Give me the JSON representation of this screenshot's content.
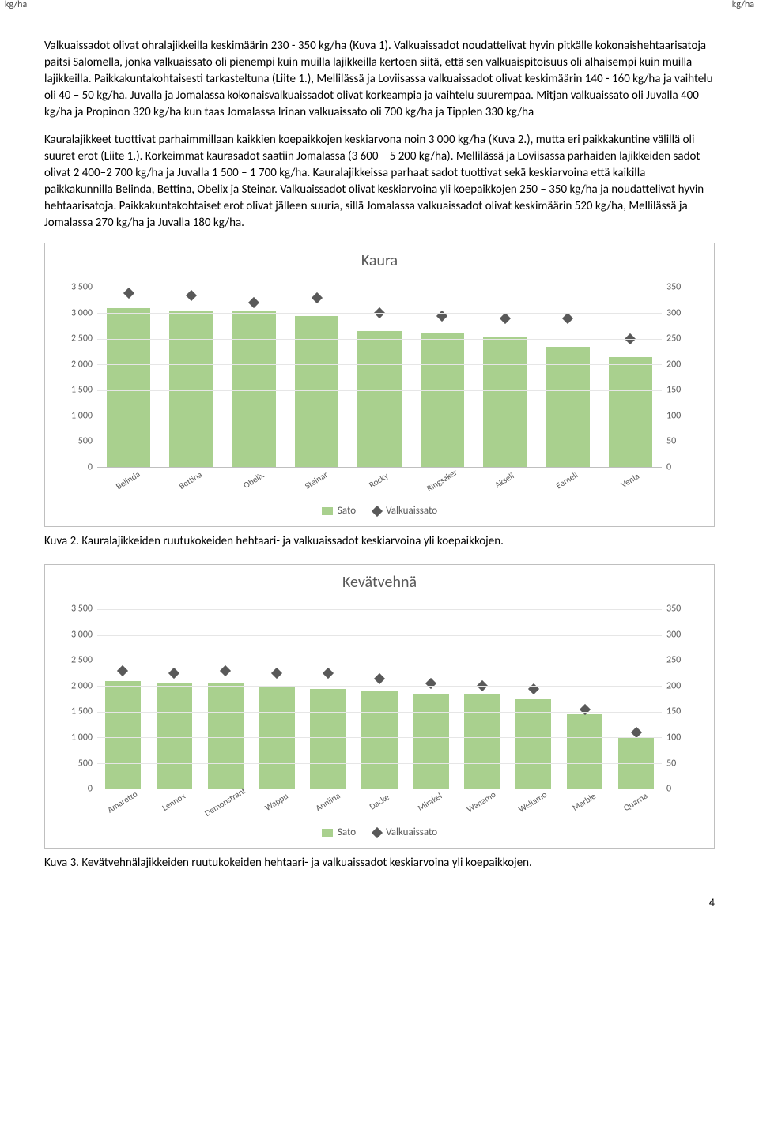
{
  "paragraphs": {
    "p1": "Valkuaissadot olivat ohralajikkeilla keskimäärin 230 - 350 kg/ha (Kuva 1). Valkuaissadot noudattelivat hyvin pitkälle kokonaishehtaarisatoja paitsi Salomella, jonka valkuaissato oli pienempi kuin muilla lajikkeilla kertoen siitä, että sen valkuaispitoisuus oli alhaisempi kuin muilla lajikkeilla. Paikkakuntakohtaisesti tarkasteltuna (Liite 1.), Mellilässä ja Loviisassa valkuaissadot olivat keskimäärin 140 - 160 kg/ha ja vaihtelu oli 40 – 50 kg/ha. Juvalla ja Jomalassa kokonaisvalkuaissadot olivat korkeampia ja vaihtelu suurempaa. Mitjan valkuaissato oli Juvalla 400 kg/ha ja Propinon 320 kg/ha kun taas Jomalassa Irinan valkuaissato oli 700 kg/ha ja Tipplen 330 kg/ha",
    "p2": "Kauralajikkeet tuottivat parhaimmillaan kaikkien koepaikkojen keskiarvona noin 3 000 kg/ha (Kuva 2.), mutta eri paikkakuntine välillä oli suuret erot (Liite 1.). Korkeimmat kaurasadot saatiin Jomalassa (3 600 – 5 200 kg/ha). Mellilässä ja Loviisassa parhaiden lajikkeiden sadot olivat 2 400–2 700 kg/ha ja Juvalla 1 500 – 1 700 kg/ha. Kauralajikkeissa parhaat sadot tuottivat sekä keskiarvoina että kaikilla paikkakunnilla Belinda, Bettina, Obelix ja Steinar. Valkuaissadot olivat keskiarvoina yli koepaikkojen 250 – 350 kg/ha ja noudattelivat hyvin hehtaarisatoja. Paikkakuntakohtaiset erot olivat jälleen suuria, sillä Jomalassa valkuaissadot olivat keskimäärin 520 kg/ha, Mellilässä ja Jomalassa 270 kg/ha ja Juvalla 180 kg/ha."
  },
  "captions": {
    "c2": "Kuva 2. Kauralajikkeiden ruutukokeiden hehtaari- ja valkuaissadot keskiarvoina yli koepaikkojen.",
    "c3": "Kuva 3. Kevätvehnälajikkeiden ruutukokeiden hehtaari- ja valkuaissadot keskiarvoina yli koepaikkojen."
  },
  "legend": {
    "sato": "Sato",
    "valk": "Valkuaissato"
  },
  "axis_unit": "kg/ha",
  "page_number": "4",
  "charts": {
    "kaura": {
      "title": "Kaura",
      "y_left": {
        "ticks": [
          0,
          500,
          1000,
          1500,
          2000,
          2500,
          3000,
          3500
        ],
        "labels": [
          "0",
          "500",
          "1 000",
          "1 500",
          "2 000",
          "2 500",
          "3 000",
          "3 500"
        ],
        "max": 3500
      },
      "y_right": {
        "ticks": [
          0,
          50,
          100,
          150,
          200,
          250,
          300,
          350
        ],
        "labels": [
          "0",
          "50",
          "100",
          "150",
          "200",
          "250",
          "300",
          "350"
        ],
        "max": 350
      },
      "categories": [
        "Belinda",
        "Bettina",
        "Obelix",
        "Steinar",
        "Rocky",
        "Ringsaker",
        "Akseli",
        "Eemeli",
        "Venla"
      ],
      "bar_values": [
        3100,
        3050,
        3050,
        2950,
        2650,
        2600,
        2550,
        2350,
        2150
      ],
      "marker_values": [
        340,
        335,
        320,
        330,
        300,
        295,
        290,
        290,
        250
      ],
      "bar_color": "#a9d08e",
      "marker_color": "#595959",
      "grid_color": "#e6e6e6"
    },
    "vehna": {
      "title": "Kevätvehnä",
      "y_left": {
        "ticks": [
          0,
          500,
          1000,
          1500,
          2000,
          2500,
          3000,
          3500
        ],
        "labels": [
          "0",
          "500",
          "1 000",
          "1 500",
          "2 000",
          "2 500",
          "3 000",
          "3 500"
        ],
        "max": 3500
      },
      "y_right": {
        "ticks": [
          0,
          50,
          100,
          150,
          200,
          250,
          300,
          350
        ],
        "labels": [
          "0",
          "50",
          "100",
          "150",
          "200",
          "250",
          "300",
          "350"
        ],
        "max": 350
      },
      "categories": [
        "Amaretto",
        "Lennox",
        "Demonstrant",
        "Wappu",
        "Anniina",
        "Dacke",
        "Mirakel",
        "Wanamo",
        "Wellamo",
        "Marble",
        "Quarna"
      ],
      "bar_values": [
        2100,
        2050,
        2050,
        2000,
        1950,
        1900,
        1850,
        1850,
        1750,
        1450,
        1000
      ],
      "marker_values": [
        230,
        225,
        230,
        225,
        225,
        215,
        205,
        200,
        195,
        155,
        110
      ],
      "bar_color": "#a9d08e",
      "marker_color": "#595959",
      "grid_color": "#e6e6e6"
    }
  }
}
